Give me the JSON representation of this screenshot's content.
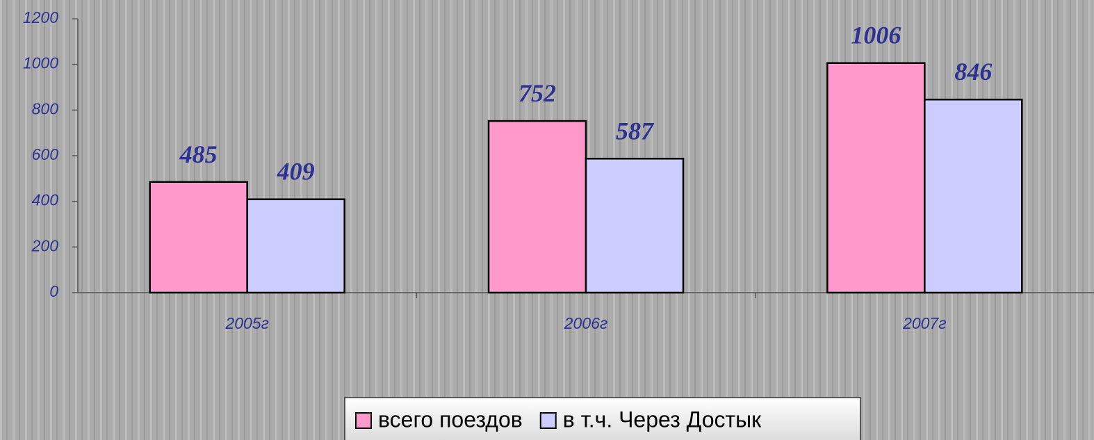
{
  "chart_data": {
    "type": "bar",
    "categories": [
      "2005г",
      "2006г",
      "2007г"
    ],
    "series": [
      {
        "name": "всего поездов",
        "color": "#ff99cc",
        "values": [
          485,
          752,
          1006
        ]
      },
      {
        "name": "в т.ч. Через Достык",
        "color": "#ccccff",
        "values": [
          409,
          587,
          846
        ]
      }
    ],
    "ylim": [
      0,
      1200
    ],
    "yticks": [
      0,
      200,
      400,
      600,
      800,
      1000,
      1200
    ],
    "legend": "bottom"
  }
}
